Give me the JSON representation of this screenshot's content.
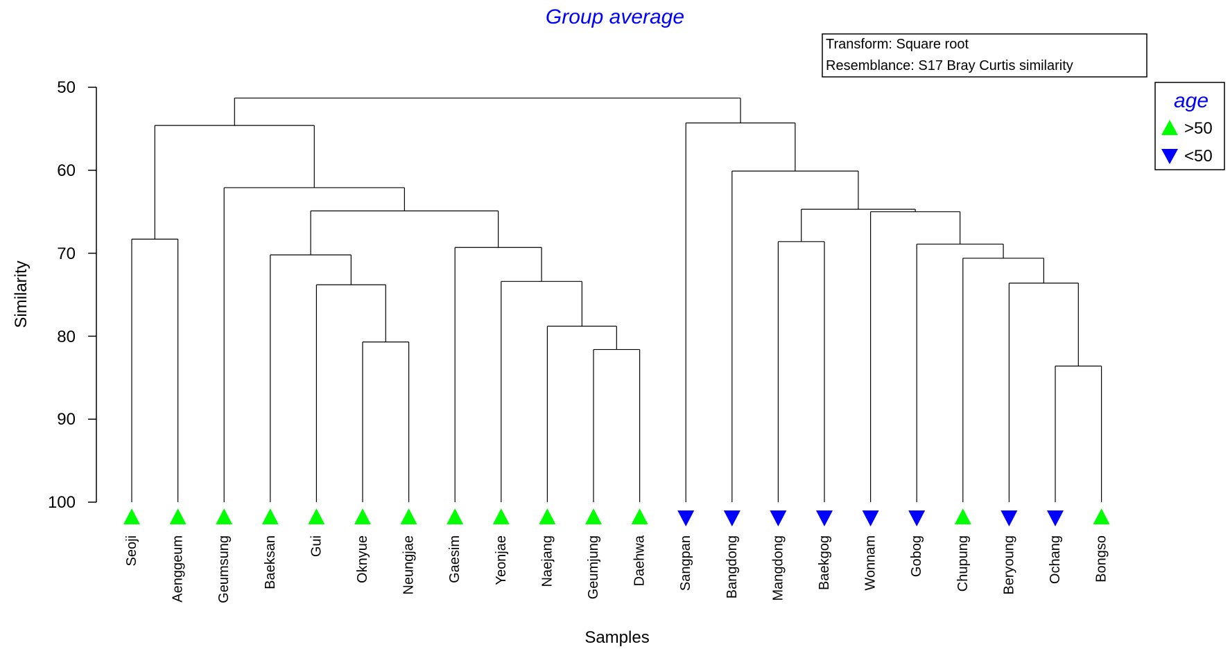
{
  "chart_data": {
    "type": "dendrogram",
    "title": "Group average",
    "xlabel": "Samples",
    "ylabel": "Similarity",
    "ylim": [
      50,
      100
    ],
    "yticks": [
      "50",
      "60",
      "70",
      "80",
      "90",
      "100"
    ],
    "info": [
      "Transform: Square root",
      "Resemblance: S17 Bray Curtis similarity"
    ],
    "colors": {
      "title": "#0000ff",
      "up_marker": "#00ff00",
      "down_marker": "#0000ff",
      "lines": "#000000"
    },
    "legend": {
      "position": "top-right",
      "title": "age",
      "items": [
        {
          "label": ">50",
          "symbol": "up"
        },
        {
          "label": "<50",
          "symbol": "down"
        }
      ]
    },
    "samples": [
      {
        "name": "Seoji",
        "age": ">50"
      },
      {
        "name": "Aenggeum",
        "age": ">50"
      },
      {
        "name": "Geumsung",
        "age": ">50"
      },
      {
        "name": "Baeksan",
        "age": ">50"
      },
      {
        "name": "Gui",
        "age": ">50"
      },
      {
        "name": "Oknyue",
        "age": ">50"
      },
      {
        "name": "Neungjae",
        "age": ">50"
      },
      {
        "name": "Gaesim",
        "age": ">50"
      },
      {
        "name": "Yeonjae",
        "age": ">50"
      },
      {
        "name": "Naejang",
        "age": ">50"
      },
      {
        "name": "Geumjung",
        "age": ">50"
      },
      {
        "name": "Daehwa",
        "age": ">50"
      },
      {
        "name": "Sangpan",
        "age": "<50"
      },
      {
        "name": "Bangdong",
        "age": "<50"
      },
      {
        "name": "Mangdong",
        "age": "<50"
      },
      {
        "name": "Baekgog",
        "age": "<50"
      },
      {
        "name": "Wonnam",
        "age": "<50"
      },
      {
        "name": "Gobog",
        "age": "<50"
      },
      {
        "name": "Chupung",
        "age": ">50"
      },
      {
        "name": "Beryoung",
        "age": "<50"
      },
      {
        "name": "Ochang",
        "age": "<50"
      },
      {
        "name": "Bongso",
        "age": ">50"
      }
    ],
    "merges": [
      {
        "left": 0,
        "right": 1,
        "similarity": 68.3
      },
      {
        "left": 5,
        "right": 6,
        "similarity": 80.7
      },
      {
        "left": 4,
        "right": "m1",
        "similarity": 73.8
      },
      {
        "left": 3,
        "right": "m2",
        "similarity": 70.2
      },
      {
        "left": 10,
        "right": 11,
        "similarity": 81.6
      },
      {
        "left": 9,
        "right": "m4",
        "similarity": 78.8
      },
      {
        "left": 8,
        "right": "m5",
        "similarity": 73.4
      },
      {
        "left": 7,
        "right": "m6",
        "similarity": 69.3
      },
      {
        "left": "m3",
        "right": "m7",
        "similarity": 64.9
      },
      {
        "left": 2,
        "right": "m8",
        "similarity": 62.1
      },
      {
        "left": "m0",
        "right": "m9",
        "similarity": 54.6
      },
      {
        "left": 20,
        "right": 21,
        "similarity": 83.6
      },
      {
        "left": 19,
        "right": "m11",
        "similarity": 73.6
      },
      {
        "left": 18,
        "right": "m12",
        "similarity": 70.6
      },
      {
        "left": 17,
        "right": "m13",
        "similarity": 68.9
      },
      {
        "left": 16,
        "right": "m14",
        "similarity": 65.0
      },
      {
        "left": 14,
        "right": 15,
        "similarity": 68.6
      },
      {
        "left": "m16",
        "right": "m15",
        "similarity": 64.7
      },
      {
        "left": 13,
        "right": "m17",
        "similarity": 60.1
      },
      {
        "left": 12,
        "right": "m18",
        "similarity": 54.3
      },
      {
        "left": "m10",
        "right": "m19",
        "similarity": 51.3
      }
    ]
  }
}
